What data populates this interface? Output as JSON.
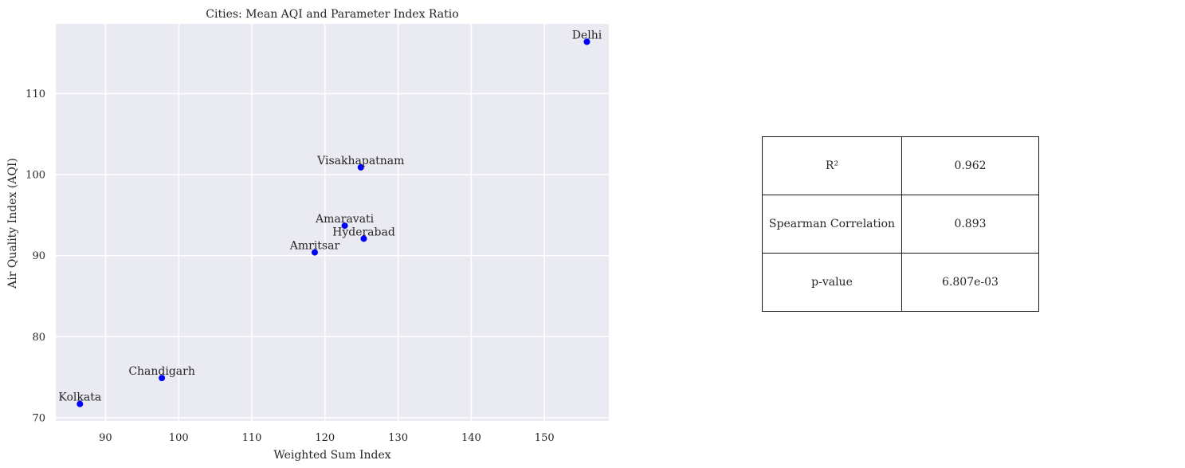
{
  "chart_data": {
    "type": "scatter",
    "title": "Cities: Mean AQI and Parameter Index Ratio",
    "xlabel": "Weighted Sum Index",
    "ylabel": "Air Quality Index (AQI)",
    "xlim": [
      83.2,
      158.8
    ],
    "ylim": [
      69.6,
      118.6
    ],
    "xticks": [
      90,
      100,
      110,
      120,
      130,
      140,
      150
    ],
    "yticks": [
      70,
      80,
      90,
      100,
      110
    ],
    "grid": true,
    "marker_color": "#0000ff",
    "background_color": "#eaeaf2",
    "points": [
      {
        "label": "Delhi",
        "x": 155.8,
        "y": 116.4
      },
      {
        "label": "Visakhapatnam",
        "x": 124.9,
        "y": 100.9
      },
      {
        "label": "Amaravati",
        "x": 122.7,
        "y": 93.7
      },
      {
        "label": "Hyderabad",
        "x": 125.3,
        "y": 92.1
      },
      {
        "label": "Amritsar",
        "x": 118.6,
        "y": 90.4
      },
      {
        "label": "Chandigarh",
        "x": 97.7,
        "y": 74.9
      },
      {
        "label": "Kolkata",
        "x": 86.5,
        "y": 71.7
      }
    ]
  },
  "stats_table": {
    "rows": [
      {
        "metric": "R²",
        "value": "0.962"
      },
      {
        "metric": "Spearman Correlation",
        "value": "0.893"
      },
      {
        "metric": "p-value",
        "value": "6.807e-03"
      }
    ]
  }
}
